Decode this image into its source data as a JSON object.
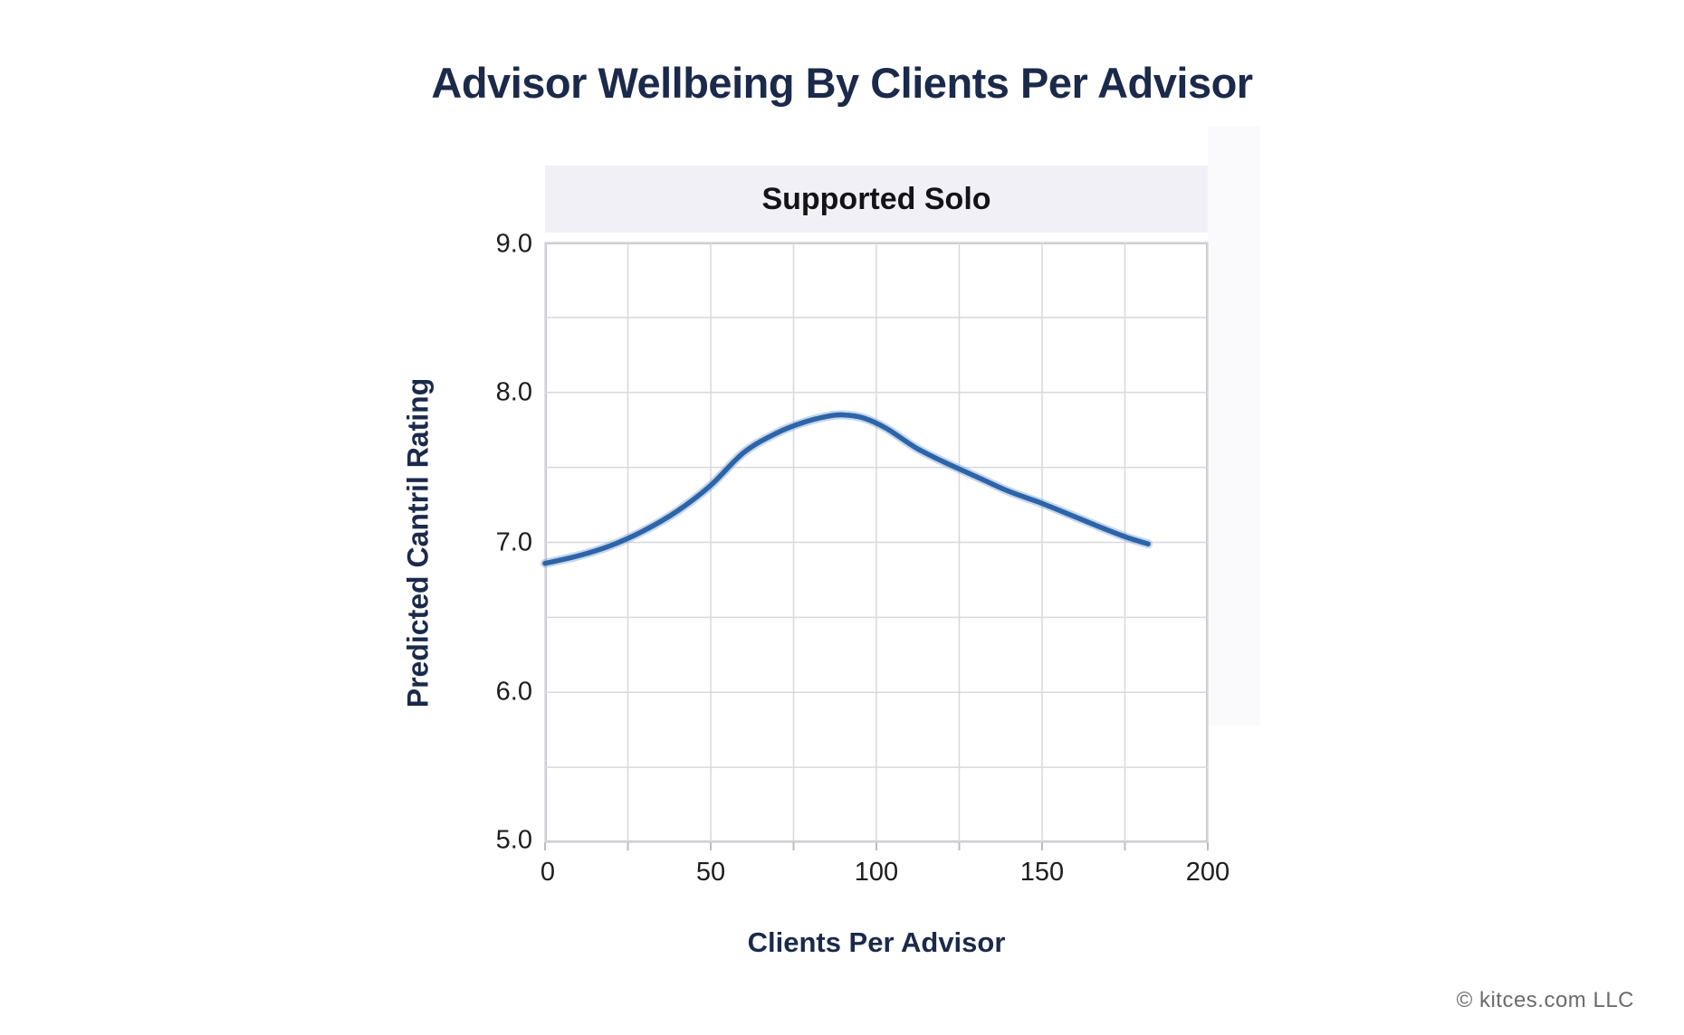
{
  "title": {
    "text": "Advisor Wellbeing By Clients Per Advisor",
    "color": "#1b2a4b"
  },
  "facet": {
    "label": "Supported Solo",
    "background": "#f0f0f6"
  },
  "footer": {
    "text": "© kitces.com LLC"
  },
  "chart_data": {
    "type": "line",
    "title": "Supported Solo",
    "xlabel": "Clients Per Advisor",
    "ylabel": "Predicted Cantril Rating",
    "xlim": [
      0,
      200
    ],
    "ylim": [
      5.0,
      9.0
    ],
    "grid": true,
    "x_grid_step": 25,
    "y_grid_step": 0.5,
    "x_ticks": [
      0,
      50,
      100,
      150,
      200
    ],
    "x_tick_labels": [
      "0",
      "50",
      "100",
      "150",
      "200"
    ],
    "y_ticks": [
      9.0,
      8.0,
      7.0,
      6.0,
      5.0
    ],
    "y_tick_labels": [
      "9.0",
      "8.0",
      "7.0",
      "6.0",
      "5.0"
    ],
    "legend_position": "none",
    "series": [
      {
        "name": "Predicted Cantril Rating (Supported Solo)",
        "color": "#2d64a8",
        "band_color": "#7fa6d5",
        "x": [
          0,
          10,
          20,
          30,
          40,
          50,
          60,
          70,
          78,
          85,
          90,
          96,
          103,
          112,
          120,
          130,
          140,
          150,
          160,
          170,
          176,
          182
        ],
        "y": [
          6.86,
          6.91,
          6.98,
          7.08,
          7.21,
          7.38,
          7.6,
          7.73,
          7.8,
          7.84,
          7.85,
          7.83,
          7.76,
          7.63,
          7.54,
          7.44,
          7.34,
          7.26,
          7.17,
          7.08,
          7.03,
          6.99
        ]
      }
    ],
    "annotations": []
  },
  "style": {
    "gridline_color": "#d8d8dd",
    "panel_border_color": "#c6c6cd",
    "tick_mark_color": "#bcbcc4"
  }
}
